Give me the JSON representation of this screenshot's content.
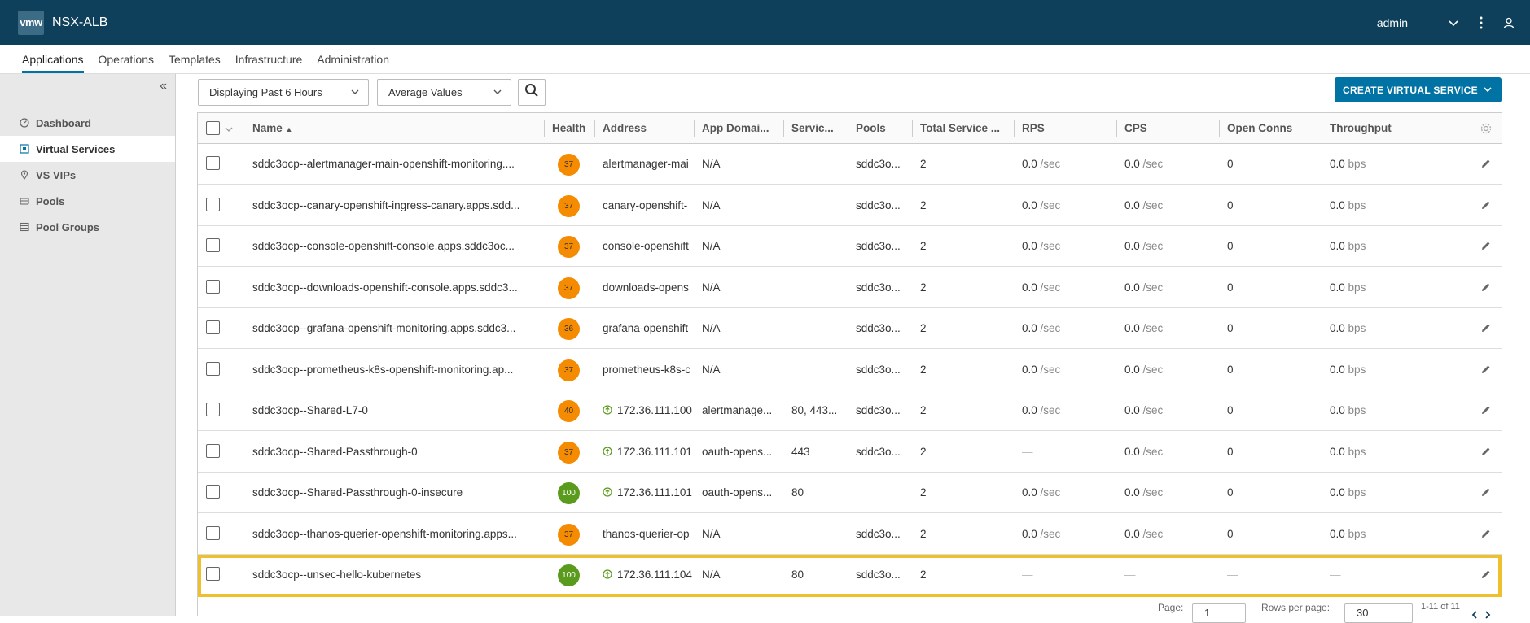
{
  "header": {
    "logo": "vmw",
    "app_title": "NSX-ALB",
    "user": "admin",
    "icons": [
      "chevron-down-icon",
      "kebab-menu-icon",
      "user-icon"
    ]
  },
  "nav": {
    "tabs": [
      {
        "label": "Applications",
        "active": true
      },
      {
        "label": "Operations"
      },
      {
        "label": "Templates"
      },
      {
        "label": "Infrastructure"
      },
      {
        "label": "Administration"
      }
    ]
  },
  "sidebar": {
    "collapse": "«",
    "items": [
      {
        "label": "Dashboard",
        "icon": "dashboard-icon"
      },
      {
        "label": "Virtual Services",
        "icon": "virtual-services-icon",
        "active": true
      },
      {
        "label": "VS VIPs",
        "icon": "location-pin-icon"
      },
      {
        "label": "Pools",
        "icon": "pool-icon"
      },
      {
        "label": "Pool Groups",
        "icon": "pool-groups-icon"
      }
    ]
  },
  "toolbar": {
    "time_range": "Displaying Past 6 Hours",
    "values_mode": "Average Values",
    "create_label": "CREATE VIRTUAL SERVICE"
  },
  "table": {
    "headers": {
      "name": "Name",
      "health": "Health",
      "address": "Address",
      "app_domain": "App Domai...",
      "services": "Servic...",
      "pools": "Pools",
      "total_service": "Total Service ...",
      "rps": "RPS",
      "cps": "CPS",
      "open_conns": "Open Conns",
      "throughput": "Throughput"
    },
    "sort_indicator": "▲",
    "rows": [
      {
        "name": "sddc3ocp--alertmanager-main-openshift-monitoring....",
        "health": "37",
        "address": "alertmanager-mai",
        "app_domain": "N/A",
        "services": "",
        "pools": "sddc3o...",
        "total": "2",
        "rps": "0.0",
        "rps_unit": "/sec",
        "cps": "0.0",
        "cps_unit": "/sec",
        "conns": "0",
        "tput": "0.0",
        "tput_unit": "bps"
      },
      {
        "name": "sddc3ocp--canary-openshift-ingress-canary.apps.sdd...",
        "health": "37",
        "address": "canary-openshift-",
        "app_domain": "N/A",
        "services": "",
        "pools": "sddc3o...",
        "total": "2",
        "rps": "0.0",
        "rps_unit": "/sec",
        "cps": "0.0",
        "cps_unit": "/sec",
        "conns": "0",
        "tput": "0.0",
        "tput_unit": "bps"
      },
      {
        "name": "sddc3ocp--console-openshift-console.apps.sddc3oc...",
        "health": "37",
        "address": "console-openshift",
        "app_domain": "N/A",
        "services": "",
        "pools": "sddc3o...",
        "total": "2",
        "rps": "0.0",
        "rps_unit": "/sec",
        "cps": "0.0",
        "cps_unit": "/sec",
        "conns": "0",
        "tput": "0.0",
        "tput_unit": "bps"
      },
      {
        "name": "sddc3ocp--downloads-openshift-console.apps.sddc3...",
        "health": "37",
        "address": "downloads-opens",
        "app_domain": "N/A",
        "services": "",
        "pools": "sddc3o...",
        "total": "2",
        "rps": "0.0",
        "rps_unit": "/sec",
        "cps": "0.0",
        "cps_unit": "/sec",
        "conns": "0",
        "tput": "0.0",
        "tput_unit": "bps"
      },
      {
        "name": "sddc3ocp--grafana-openshift-monitoring.apps.sddc3...",
        "health": "36",
        "address": "grafana-openshift",
        "app_domain": "N/A",
        "services": "",
        "pools": "sddc3o...",
        "total": "2",
        "rps": "0.0",
        "rps_unit": "/sec",
        "cps": "0.0",
        "cps_unit": "/sec",
        "conns": "0",
        "tput": "0.0",
        "tput_unit": "bps"
      },
      {
        "name": "sddc3ocp--prometheus-k8s-openshift-monitoring.ap...",
        "health": "37",
        "address": "prometheus-k8s-c",
        "app_domain": "N/A",
        "services": "",
        "pools": "sddc3o...",
        "total": "2",
        "rps": "0.0",
        "rps_unit": "/sec",
        "cps": "0.0",
        "cps_unit": "/sec",
        "conns": "0",
        "tput": "0.0",
        "tput_unit": "bps"
      },
      {
        "name": "sddc3ocp--Shared-L7-0",
        "health": "40",
        "address": "172.36.111.100",
        "address_icon": true,
        "app_domain": "alertmanage...",
        "services": "80, 443...",
        "pools": "sddc3o...",
        "total": "2",
        "rps": "0.0",
        "rps_unit": "/sec",
        "cps": "0.0",
        "cps_unit": "/sec",
        "conns": "0",
        "tput": "0.0",
        "tput_unit": "bps"
      },
      {
        "name": "sddc3ocp--Shared-Passthrough-0",
        "health": "37",
        "address": "172.36.111.101",
        "address_icon": true,
        "app_domain": "oauth-opens...",
        "services": "443",
        "pools": "sddc3o...",
        "total": "2",
        "rps": "—",
        "rps_unit": "",
        "cps": "0.0",
        "cps_unit": "/sec",
        "conns": "0",
        "tput": "0.0",
        "tput_unit": "bps"
      },
      {
        "name": "sddc3ocp--Shared-Passthrough-0-insecure",
        "health": "100",
        "address": "172.36.111.101",
        "address_icon": true,
        "app_domain": "oauth-opens...",
        "services": "80",
        "pools": "",
        "total": "2",
        "rps": "0.0",
        "rps_unit": "/sec",
        "cps": "0.0",
        "cps_unit": "/sec",
        "conns": "0",
        "tput": "0.0",
        "tput_unit": "bps"
      },
      {
        "name": "sddc3ocp--thanos-querier-openshift-monitoring.apps...",
        "health": "37",
        "address": "thanos-querier-op",
        "app_domain": "N/A",
        "services": "",
        "pools": "sddc3o...",
        "total": "2",
        "rps": "0.0",
        "rps_unit": "/sec",
        "cps": "0.0",
        "cps_unit": "/sec",
        "conns": "0",
        "tput": "0.0",
        "tput_unit": "bps"
      },
      {
        "name": "sddc3ocp--unsec-hello-kubernetes",
        "health": "100",
        "address": "172.36.111.104",
        "address_icon": true,
        "app_domain": "N/A",
        "services": "80",
        "pools": "sddc3o...",
        "total": "2",
        "rps": "—",
        "rps_unit": "",
        "cps": "—",
        "cps_unit": "",
        "conns": "—",
        "tput": "—",
        "tput_unit": "",
        "highlighted": true
      }
    ]
  },
  "pagination": {
    "page_label": "Page:",
    "page": "1",
    "rows_label": "Rows per page:",
    "rows_per_page": "30",
    "range": "1-11 of 11"
  },
  "colors": {
    "header_bg": "#0e3f5b",
    "accent": "#0072a3",
    "health_orange": "#f48b00",
    "health_green": "#5a9a1c",
    "highlight": "#f0c02c"
  }
}
